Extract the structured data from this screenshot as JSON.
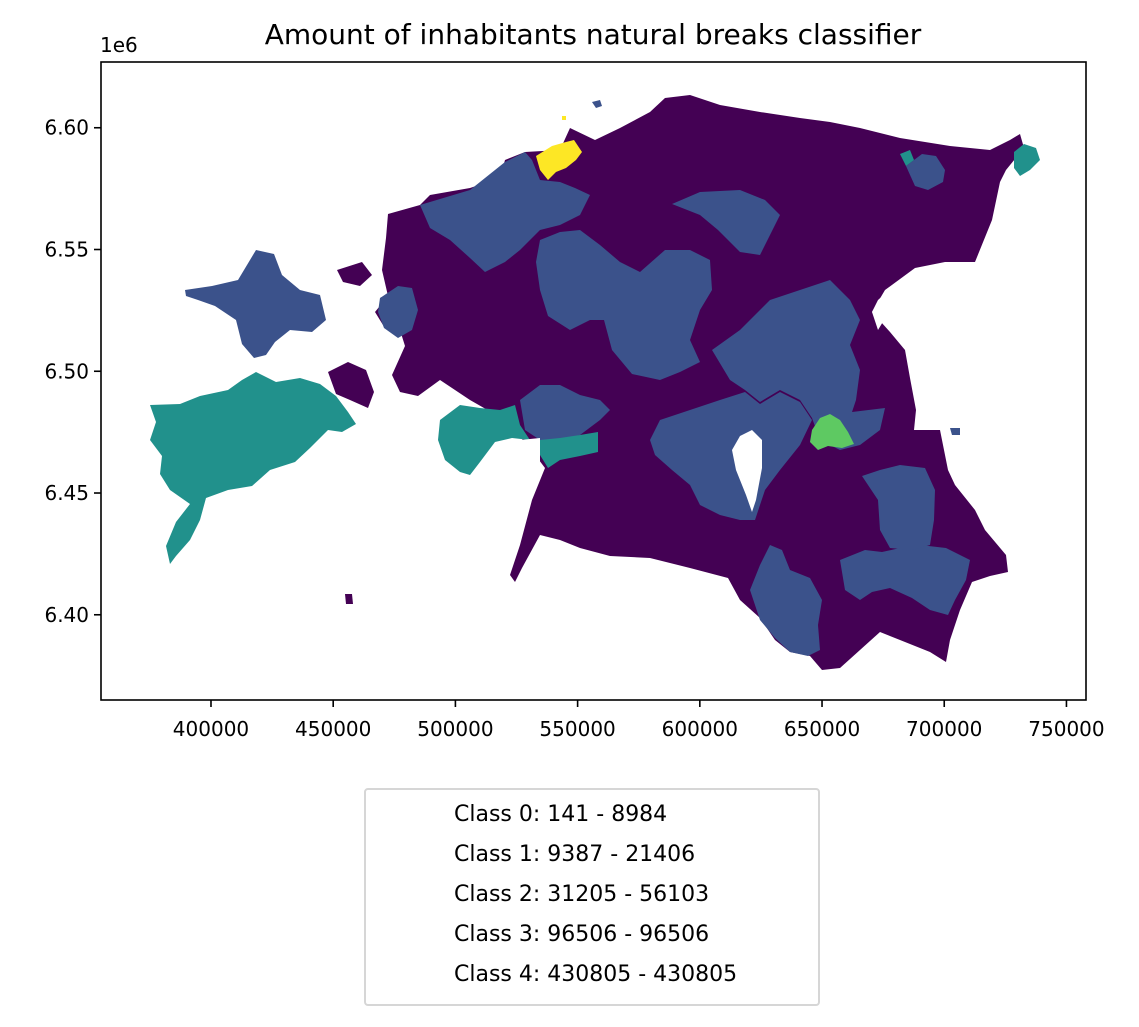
{
  "chart_data": {
    "type": "choropleth",
    "title": "Amount of inhabitants natural breaks classifier",
    "y_offset_label": "1e6",
    "xlim": [
      355000,
      758000
    ],
    "ylim": [
      6.365,
      6.627
    ],
    "x_ticks": [
      400000,
      450000,
      500000,
      550000,
      600000,
      650000,
      700000,
      750000
    ],
    "x_tick_labels": [
      "400000",
      "450000",
      "500000",
      "550000",
      "600000",
      "650000",
      "700000",
      "750000"
    ],
    "y_ticks": [
      6.4,
      6.45,
      6.5,
      6.55,
      6.6
    ],
    "y_tick_labels": [
      "6.40",
      "6.45",
      "6.50",
      "6.55",
      "6.60"
    ],
    "legend": {
      "placement": "below",
      "entries": [
        {
          "label": "Class 0: 141 - 8984",
          "color": "#440154"
        },
        {
          "label": "Class 1: 9387 - 21406",
          "color": "#3b528b"
        },
        {
          "label": "Class 2: 31205 - 56103",
          "color": "#21918c"
        },
        {
          "label": "Class 3: 96506 - 96506",
          "color": "#5ec962"
        },
        {
          "label": "Class 4: 430805 - 430805",
          "color": "#fde725"
        }
      ]
    },
    "class_colors": [
      "#440154",
      "#3b528b",
      "#21918c",
      "#5ec962",
      "#fde725"
    ]
  }
}
